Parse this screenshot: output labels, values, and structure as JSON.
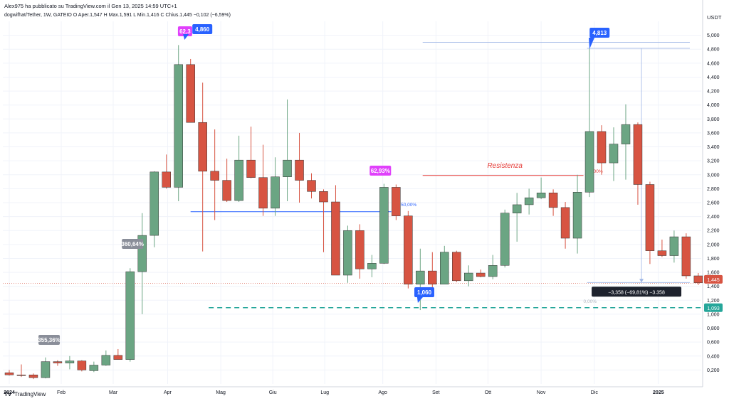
{
  "header": {
    "published": "Alex975 ha pubblicato su TradingView.com il Gen 13, 2025 14:59 UTC+1",
    "symbol": "dogwifhat/Tether, 1W, GATEIO",
    "ohlc": "O Aper.1,547 H Max.1,591 L Min.1,416 C Chius.1,445 −0,102 (−6,59%)"
  },
  "logo_text": "TradingView",
  "colors": {
    "up": "#6ba583",
    "down": "#d75442",
    "blue_line": "#2962ff",
    "teal": "#26a69a",
    "red_line": "#e53935",
    "magenta": "#e040fb"
  },
  "chart_data": {
    "type": "candlestick",
    "currency": "USDT",
    "ylim": [
      0,
      5.2
    ],
    "y_ticks": [
      "0,200",
      "0,400",
      "0,600",
      "0,800",
      "1,000",
      "1,200",
      "1,400",
      "1,600",
      "1,800",
      "2,000",
      "2,200",
      "2,400",
      "2,600",
      "2,800",
      "3,000",
      "3,200",
      "3,400",
      "3,600",
      "3,800",
      "4,000",
      "4,200",
      "4,400",
      "4,600",
      "4,800",
      "5,000"
    ],
    "x_labels": [
      "2024",
      "Feb",
      "Mar",
      "Apr",
      "Mag",
      "Giu",
      "Lug",
      "Ago",
      "Set",
      "Ott",
      "Nov",
      "Dic",
      "2025"
    ],
    "candles": [
      {
        "o": 0.16,
        "h": 0.2,
        "l": 0.12,
        "c": 0.13
      },
      {
        "o": 0.13,
        "h": 0.28,
        "l": 0.1,
        "c": 0.12
      },
      {
        "o": 0.13,
        "h": 0.15,
        "l": 0.07,
        "c": 0.09
      },
      {
        "o": 0.09,
        "h": 0.38,
        "l": 0.08,
        "c": 0.32
      },
      {
        "o": 0.32,
        "h": 0.34,
        "l": 0.26,
        "c": 0.3
      },
      {
        "o": 0.3,
        "h": 0.4,
        "l": 0.21,
        "c": 0.33
      },
      {
        "o": 0.33,
        "h": 0.34,
        "l": 0.18,
        "c": 0.2
      },
      {
        "o": 0.19,
        "h": 0.32,
        "l": 0.17,
        "c": 0.27
      },
      {
        "o": 0.27,
        "h": 0.48,
        "l": 0.26,
        "c": 0.41
      },
      {
        "o": 0.41,
        "h": 0.5,
        "l": 0.35,
        "c": 0.35
      },
      {
        "o": 0.35,
        "h": 1.66,
        "l": 0.32,
        "c": 1.61
      },
      {
        "o": 1.61,
        "h": 2.45,
        "l": 1.0,
        "c": 2.13
      },
      {
        "o": 2.13,
        "h": 3.05,
        "l": 1.96,
        "c": 3.04
      },
      {
        "o": 3.04,
        "h": 3.29,
        "l": 2.8,
        "c": 2.82
      },
      {
        "o": 2.82,
        "h": 4.86,
        "l": 2.62,
        "c": 4.58
      },
      {
        "o": 4.58,
        "h": 4.66,
        "l": 3.75,
        "c": 3.75
      },
      {
        "o": 3.75,
        "h": 4.32,
        "l": 1.9,
        "c": 3.05
      },
      {
        "o": 3.05,
        "h": 3.65,
        "l": 2.35,
        "c": 2.92
      },
      {
        "o": 2.92,
        "h": 3.23,
        "l": 2.61,
        "c": 2.63
      },
      {
        "o": 2.63,
        "h": 3.56,
        "l": 2.61,
        "c": 3.21
      },
      {
        "o": 3.21,
        "h": 3.69,
        "l": 2.95,
        "c": 2.96
      },
      {
        "o": 2.96,
        "h": 3.43,
        "l": 2.41,
        "c": 2.52
      },
      {
        "o": 2.52,
        "h": 3.25,
        "l": 2.41,
        "c": 2.97
      },
      {
        "o": 2.97,
        "h": 4.08,
        "l": 2.62,
        "c": 3.21
      },
      {
        "o": 3.21,
        "h": 3.6,
        "l": 2.6,
        "c": 2.92
      },
      {
        "o": 2.92,
        "h": 3.02,
        "l": 2.66,
        "c": 2.76
      },
      {
        "o": 2.76,
        "h": 2.79,
        "l": 1.89,
        "c": 2.61
      },
      {
        "o": 2.61,
        "h": 2.85,
        "l": 1.57,
        "c": 1.56
      },
      {
        "o": 1.56,
        "h": 2.27,
        "l": 1.45,
        "c": 2.2
      },
      {
        "o": 2.2,
        "h": 2.29,
        "l": 1.51,
        "c": 1.65
      },
      {
        "o": 1.65,
        "h": 1.85,
        "l": 1.53,
        "c": 1.73
      },
      {
        "o": 1.73,
        "h": 2.87,
        "l": 1.72,
        "c": 2.82
      },
      {
        "o": 2.82,
        "h": 2.86,
        "l": 2.35,
        "c": 2.41
      },
      {
        "o": 2.41,
        "h": 2.48,
        "l": 1.37,
        "c": 1.43
      },
      {
        "o": 1.43,
        "h": 1.94,
        "l": 1.06,
        "c": 1.62
      },
      {
        "o": 1.62,
        "h": 1.89,
        "l": 1.33,
        "c": 1.43
      },
      {
        "o": 1.43,
        "h": 1.98,
        "l": 1.43,
        "c": 1.89
      },
      {
        "o": 1.89,
        "h": 1.91,
        "l": 1.46,
        "c": 1.48
      },
      {
        "o": 1.48,
        "h": 1.7,
        "l": 1.4,
        "c": 1.59
      },
      {
        "o": 1.59,
        "h": 1.64,
        "l": 1.53,
        "c": 1.54
      },
      {
        "o": 1.54,
        "h": 1.85,
        "l": 1.5,
        "c": 1.7
      },
      {
        "o": 1.7,
        "h": 2.5,
        "l": 1.67,
        "c": 2.45
      },
      {
        "o": 2.45,
        "h": 2.74,
        "l": 2.04,
        "c": 2.57
      },
      {
        "o": 2.57,
        "h": 2.8,
        "l": 2.43,
        "c": 2.67
      },
      {
        "o": 2.67,
        "h": 2.96,
        "l": 2.65,
        "c": 2.74
      },
      {
        "o": 2.74,
        "h": 2.79,
        "l": 2.41,
        "c": 2.53
      },
      {
        "o": 2.53,
        "h": 2.61,
        "l": 1.94,
        "c": 2.09
      },
      {
        "o": 2.09,
        "h": 3.0,
        "l": 1.87,
        "c": 2.75
      },
      {
        "o": 2.75,
        "h": 4.81,
        "l": 2.68,
        "c": 3.62
      },
      {
        "o": 3.62,
        "h": 3.71,
        "l": 3.0,
        "c": 3.17
      },
      {
        "o": 3.17,
        "h": 3.68,
        "l": 2.91,
        "c": 3.44
      },
      {
        "o": 3.44,
        "h": 4.01,
        "l": 2.93,
        "c": 3.72
      },
      {
        "o": 3.72,
        "h": 3.75,
        "l": 2.57,
        "c": 2.86
      },
      {
        "o": 2.86,
        "h": 2.9,
        "l": 1.72,
        "c": 1.91
      },
      {
        "o": 1.91,
        "h": 2.07,
        "l": 1.82,
        "c": 1.84
      },
      {
        "o": 1.84,
        "h": 2.2,
        "l": 1.74,
        "c": 2.11
      },
      {
        "o": 2.11,
        "h": 2.16,
        "l": 1.51,
        "c": 1.55
      },
      {
        "o": 1.55,
        "h": 1.59,
        "l": 1.42,
        "c": 1.45
      }
    ],
    "annotations": {
      "high_label": "4,860",
      "low_label": "1,060",
      "second_high_label": "4,813",
      "fib_top_label": "62,3",
      "fib_mid_label": "62,93%",
      "fib_grey_label": "360,64%",
      "fib_low_label": "355,36%",
      "fib_50_label": "50,00%",
      "fib_60_label": "60,00%",
      "fib_0_label": "0,00%",
      "resistance_label": "Resistenza",
      "measure_label": "−3,358 (−69,81%) −3.358",
      "last_price_label": "1,445",
      "support_price_label": "1,093",
      "support_value": 1.093,
      "resistance_value": 2.99,
      "blue_level_value": 2.47,
      "measure_top": 4.813,
      "measure_bottom": 1.455
    }
  }
}
